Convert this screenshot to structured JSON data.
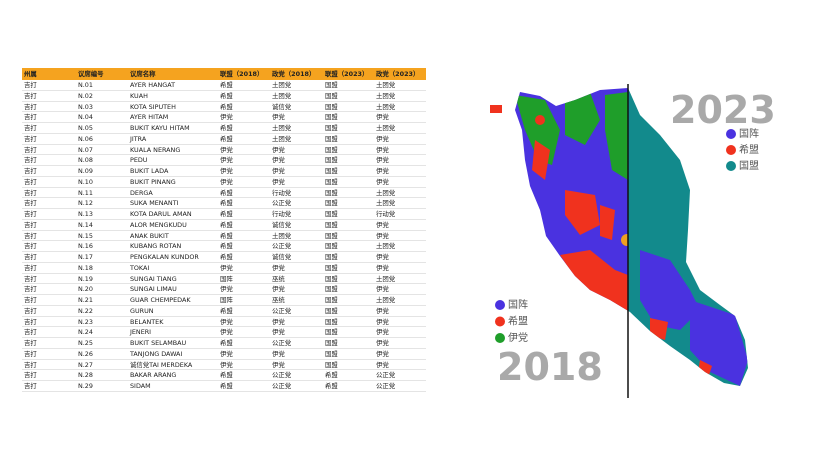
{
  "table": {
    "headers": [
      "州属",
      "议席编号",
      "议席名称",
      "联盟（2018）",
      "政党（2018）",
      "联盟（2023）",
      "政党（2023）"
    ],
    "rows": [
      [
        "吉打",
        "N.01",
        "AYER HANGAT",
        "希盟",
        "土团党",
        "国盟",
        "土团党"
      ],
      [
        "吉打",
        "N.02",
        "KUAH",
        "希盟",
        "土团党",
        "国盟",
        "土团党"
      ],
      [
        "吉打",
        "N.03",
        "KOTA SIPUTEH",
        "希盟",
        "诚信党",
        "国盟",
        "土团党"
      ],
      [
        "吉打",
        "N.04",
        "AYER HITAM",
        "伊党",
        "伊党",
        "国盟",
        "伊党"
      ],
      [
        "吉打",
        "N.05",
        "BUKIT KAYU HITAM",
        "希盟",
        "土团党",
        "国盟",
        "土团党"
      ],
      [
        "吉打",
        "N.06",
        "JITRA",
        "希盟",
        "土团党",
        "国盟",
        "伊党"
      ],
      [
        "吉打",
        "N.07",
        "KUALA NERANG",
        "伊党",
        "伊党",
        "国盟",
        "伊党"
      ],
      [
        "吉打",
        "N.08",
        "PEDU",
        "伊党",
        "伊党",
        "国盟",
        "伊党"
      ],
      [
        "吉打",
        "N.09",
        "BUKIT LADA",
        "伊党",
        "伊党",
        "国盟",
        "伊党"
      ],
      [
        "吉打",
        "N.10",
        "BUKIT PINANG",
        "伊党",
        "伊党",
        "国盟",
        "伊党"
      ],
      [
        "吉打",
        "N.11",
        "DERGA",
        "希盟",
        "行动党",
        "国盟",
        "土团党"
      ],
      [
        "吉打",
        "N.12",
        "SUKA MENANTI",
        "希盟",
        "公正党",
        "国盟",
        "土团党"
      ],
      [
        "吉打",
        "N.13",
        "KOTA DARUL AMAN",
        "希盟",
        "行动党",
        "国盟",
        "行动党"
      ],
      [
        "吉打",
        "N.14",
        "ALOR MENGKUDU",
        "希盟",
        "诚信党",
        "国盟",
        "伊党"
      ],
      [
        "吉打",
        "N.15",
        "ANAK BUKIT",
        "希盟",
        "土团党",
        "国盟",
        "伊党"
      ],
      [
        "吉打",
        "N.16",
        "KUBANG ROTAN",
        "希盟",
        "公正党",
        "国盟",
        "土团党"
      ],
      [
        "吉打",
        "N.17",
        "PENGKALAN KUNDOR",
        "希盟",
        "诚信党",
        "国盟",
        "伊党"
      ],
      [
        "吉打",
        "N.18",
        "TOKAI",
        "伊党",
        "伊党",
        "国盟",
        "伊党"
      ],
      [
        "吉打",
        "N.19",
        "SUNGAI TIANG",
        "国阵",
        "巫统",
        "国盟",
        "土团党"
      ],
      [
        "吉打",
        "N.20",
        "SUNGAI LIMAU",
        "伊党",
        "伊党",
        "国盟",
        "伊党"
      ],
      [
        "吉打",
        "N.21",
        "GUAR CHEMPEDAK",
        "国阵",
        "巫统",
        "国盟",
        "土团党"
      ],
      [
        "吉打",
        "N.22",
        "GURUN",
        "希盟",
        "公正党",
        "国盟",
        "伊党"
      ],
      [
        "吉打",
        "N.23",
        "BELANTEK",
        "伊党",
        "伊党",
        "国盟",
        "伊党"
      ],
      [
        "吉打",
        "N.24",
        "JENERI",
        "伊党",
        "伊党",
        "国盟",
        "伊党"
      ],
      [
        "吉打",
        "N.25",
        "BUKIT SELAMBAU",
        "希盟",
        "公正党",
        "国盟",
        "伊党"
      ],
      [
        "吉打",
        "N.26",
        "TANJONG DAWAI",
        "伊党",
        "伊党",
        "国盟",
        "伊党"
      ],
      [
        "吉打",
        "N.27",
        "诚信党TAI MERDEKA",
        "伊党",
        "伊党",
        "国盟",
        "伊党"
      ],
      [
        "吉打",
        "N.28",
        "BAKAR ARANG",
        "希盟",
        "公正党",
        "希盟",
        "公正党"
      ],
      [
        "吉打",
        "N.29",
        "SIDAM",
        "希盟",
        "公正党",
        "希盟",
        "公正党"
      ]
    ]
  },
  "map": {
    "year_right": "2023",
    "legend_right": [
      {
        "label": "国阵",
        "color": "#4a32e0"
      },
      {
        "label": "希盟",
        "color": "#f0321e"
      },
      {
        "label": "国盟",
        "color": "#128a8c"
      }
    ],
    "year_left": "2018",
    "legend_left": [
      {
        "label": "国阵",
        "color": "#4a32e0"
      },
      {
        "label": "希盟",
        "color": "#f0321e"
      },
      {
        "label": "伊党",
        "color": "#1f9e2a"
      }
    ]
  }
}
